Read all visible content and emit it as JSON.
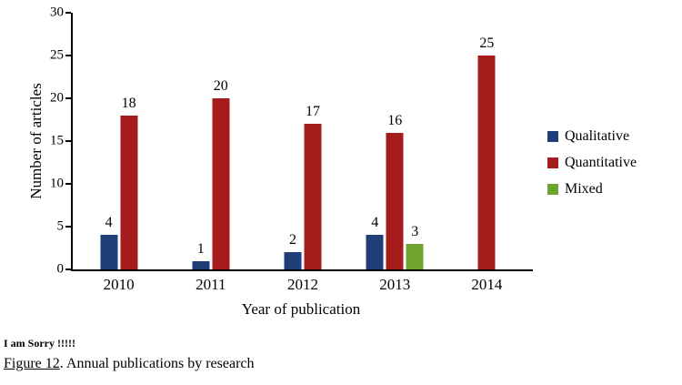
{
  "chart_data": {
    "type": "bar",
    "categories": [
      "2010",
      "2011",
      "2012",
      "2013",
      "2014"
    ],
    "series": [
      {
        "name": "Qualitative",
        "color": "#1F3E78",
        "values": [
          4,
          1,
          2,
          4,
          null
        ]
      },
      {
        "name": "Quantitative",
        "color": "#A61C1C",
        "values": [
          18,
          20,
          17,
          16,
          25
        ]
      },
      {
        "name": "Mixed",
        "color": "#6FA22E",
        "values": [
          null,
          null,
          null,
          3,
          null
        ]
      }
    ],
    "title": "",
    "xlabel": "Year of publication",
    "ylabel": "Number of articles",
    "ylim": [
      0,
      30
    ],
    "yticks": [
      0,
      5,
      10,
      15,
      20,
      25,
      30
    ],
    "grid": false,
    "data_labels": true,
    "legend_position": "right"
  },
  "caption": {
    "note": "I am Sorry !!!!!",
    "figure_label": " Figure 12",
    "figure_text": ". Annual publications by research"
  }
}
